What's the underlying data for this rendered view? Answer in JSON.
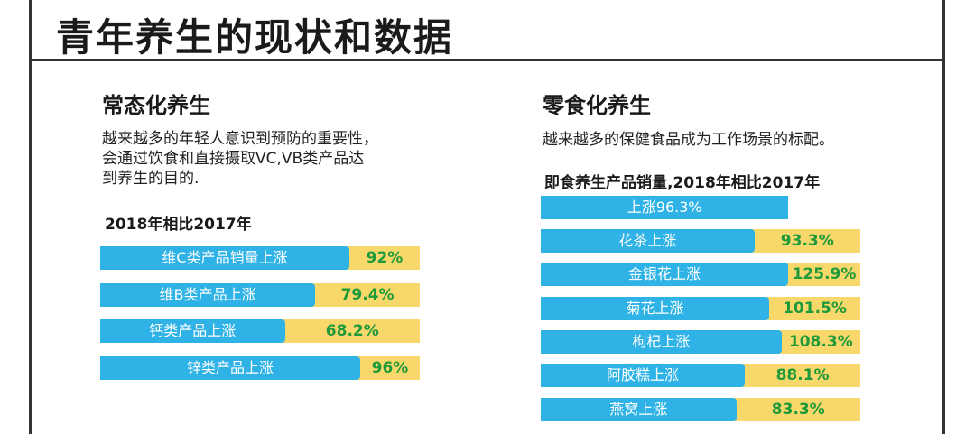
{
  "page": {
    "title": "青年养生的现状和数据"
  },
  "left": {
    "heading": "常态化养生",
    "desc_lines": [
      "越来越多的年轻人意识到预防的重要性，",
      "会通过饮食和直接摄取VC,VB类产品达",
      "到养生的目的."
    ],
    "subtitle": "2018年相比2017年"
  },
  "right": {
    "heading": "零食化养生",
    "desc": "越来越多的保健食品成为工作场景的标配。",
    "subtitle": "即食养生产品销量,2018年相比2017年"
  },
  "chart_data": [
    {
      "type": "bar",
      "orientation": "horizontal",
      "title": "2018年相比2017年",
      "categories": [
        "维C类产品销量上涨",
        "维B类产品上涨",
        "钙类产品上涨",
        "锌类产品上涨"
      ],
      "values": [
        92,
        79.4,
        68.2,
        96
      ],
      "value_labels": [
        "92%",
        "79.4%",
        "68.2%",
        "96%"
      ],
      "unit": "%"
    },
    {
      "type": "bar",
      "orientation": "horizontal",
      "title": "即食养生产品销量,2018年相比2017年",
      "overall": {
        "label": "上涨96.3%",
        "value": 96.3
      },
      "categories": [
        "花茶上涨",
        "金银花上涨",
        "菊花上涨",
        "枸杞上涨",
        "阿胶糕上涨",
        "燕窝上涨"
      ],
      "values": [
        93.3,
        125.9,
        101.5,
        108.3,
        88.1,
        83.3
      ],
      "value_labels": [
        "93.3%",
        "125.9%",
        "101.5%",
        "108.3%",
        "88.1%",
        "83.3%"
      ],
      "unit": "%"
    }
  ],
  "colors": {
    "bar": "#2fb2e6",
    "track": "#f8d86a",
    "value_text": "#1f9a3a"
  }
}
